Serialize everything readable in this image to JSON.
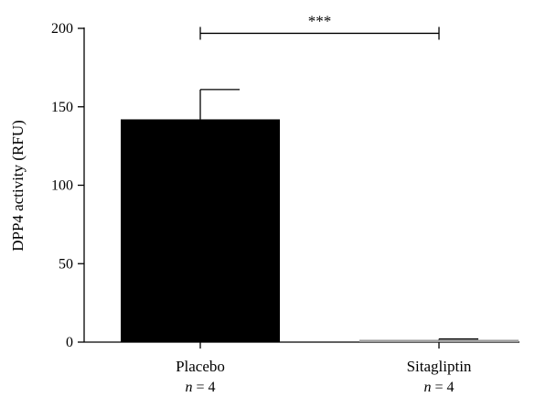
{
  "chart_data": {
    "type": "bar",
    "categories": [
      "Placebo",
      "Sitagliptin"
    ],
    "n_labels": [
      {
        "italic": "n",
        "rest": " = 4"
      },
      {
        "italic": "n",
        "rest": " = 4"
      }
    ],
    "values": [
      142,
      1.5
    ],
    "errors": [
      19,
      0.5
    ],
    "bar_colors": [
      "#000000",
      "#9e9e9e"
    ],
    "ylabel": "DPP4 activity (RFU)",
    "ylim": [
      0,
      200
    ],
    "yticks": [
      0,
      50,
      100,
      150,
      200
    ],
    "ytick_labels": [
      "0",
      "50",
      "100",
      "150",
      "200"
    ],
    "significance": {
      "label": "***",
      "y": 198,
      "from": 0,
      "to": 1
    }
  }
}
